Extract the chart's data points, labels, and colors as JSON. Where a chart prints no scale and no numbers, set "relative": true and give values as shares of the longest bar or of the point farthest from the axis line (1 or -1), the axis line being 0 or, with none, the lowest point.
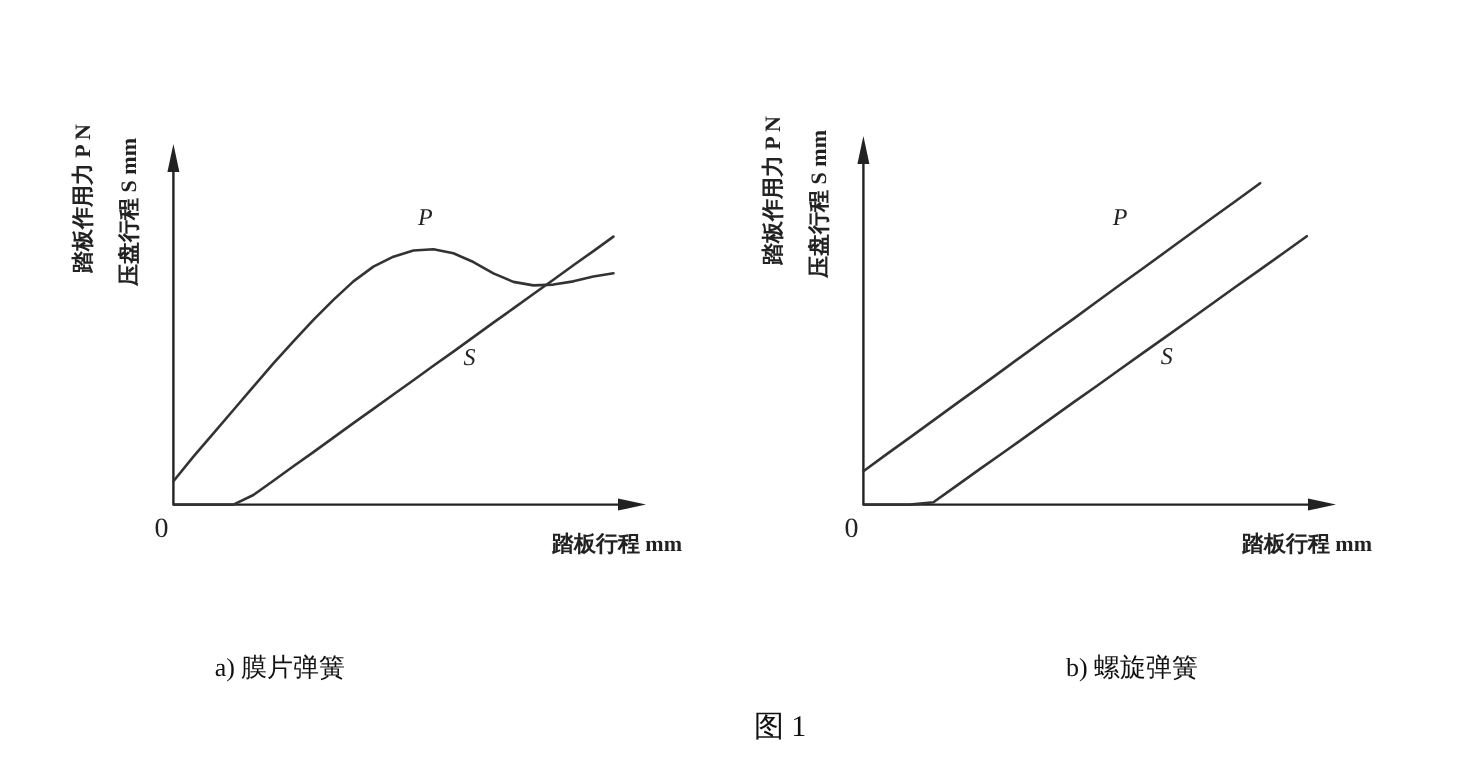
{
  "chart_data": [
    {
      "type": "line",
      "title": "a)  膜片弹簧",
      "xlabel": "踏板行程  mm",
      "ylabel": "踏板作用力 P  N",
      "annotations": [
        "压盘行程 S  mm",
        "0"
      ],
      "relative": true,
      "marker": "none",
      "line_style": "solid",
      "categories": [
        null,
        null,
        null,
        null,
        null,
        null,
        null,
        null,
        null,
        null,
        null,
        null,
        null,
        null,
        null,
        null,
        null,
        null,
        null,
        null,
        null,
        null,
        null
      ],
      "series": [
        {
          "name": "P",
          "color": "#333333",
          "values": [
            0.087,
            0.179,
            0.266,
            0.353,
            0.44,
            0.527,
            0.609,
            0.689,
            0.764,
            0.833,
            0.888,
            0.925,
            0.948,
            0.953,
            0.938,
            0.905,
            0.863,
            0.831,
            0.818,
            0.821,
            0.833,
            0.851,
            0.863
          ]
        },
        {
          "name": "S",
          "color": "#333333",
          "values": [
            0,
            0,
            0,
            0,
            0.036,
            0.089,
            0.143,
            0.196,
            0.25,
            0.304,
            0.357,
            0.411,
            0.464,
            0.518,
            0.571,
            0.625,
            0.679,
            0.732,
            0.786,
            0.839,
            0.893,
            0.946,
            1
          ]
        }
      ]
    },
    {
      "type": "line",
      "title": "b)  螺旋弹簧",
      "xlabel": "踏板行程  mm",
      "ylabel": "踏板作用力 P  N",
      "annotations": [
        "压盘行程 S  mm",
        "0",
        "图  1"
      ],
      "relative": true,
      "marker": "none",
      "line_style": "solid",
      "categories": [
        null,
        null,
        null,
        null,
        null,
        null,
        null,
        null,
        null,
        null,
        null,
        null,
        null,
        null,
        null,
        null,
        null,
        null,
        null,
        null
      ],
      "series": [
        {
          "name": "P",
          "color": "#333333",
          "values": [
            0.104,
            0.157,
            0.209,
            0.262,
            0.315,
            0.367,
            0.42,
            0.473,
            0.526,
            0.578,
            0.631,
            0.684,
            0.736,
            0.789,
            0.842,
            0.895,
            0.947,
            1.0,
            null,
            null
          ]
        },
        {
          "name": "S",
          "color": "#333333",
          "values": [
            0,
            0,
            0,
            0.0074,
            0.059,
            0.111,
            0.162,
            0.214,
            0.266,
            0.318,
            0.369,
            0.421,
            0.473,
            0.524,
            0.576,
            0.628,
            0.68,
            0.731,
            0.783,
            0.835
          ]
        }
      ]
    }
  ]
}
